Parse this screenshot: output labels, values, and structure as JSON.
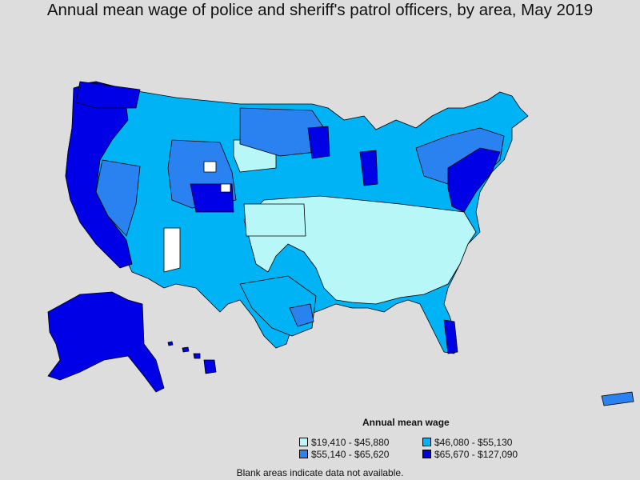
{
  "title": "Annual mean wage of police and sheriff's patrol officers, by area, May 2019",
  "legend": {
    "title": "Annual mean wage",
    "items": [
      {
        "label": "$19,410 - $45,880",
        "color": "#b7f7f7"
      },
      {
        "label": "$46,080 - $55,130",
        "color": "#00b3f5"
      },
      {
        "label": "$55,140 - $65,620",
        "color": "#2a82f0"
      },
      {
        "label": "$65,670 - $127,090",
        "color": "#0000e6"
      }
    ]
  },
  "footnote": "Blank areas indicate data not available.",
  "colors": {
    "background": "#dddddd",
    "no_data": "#ffffff",
    "border": "#000000"
  }
}
